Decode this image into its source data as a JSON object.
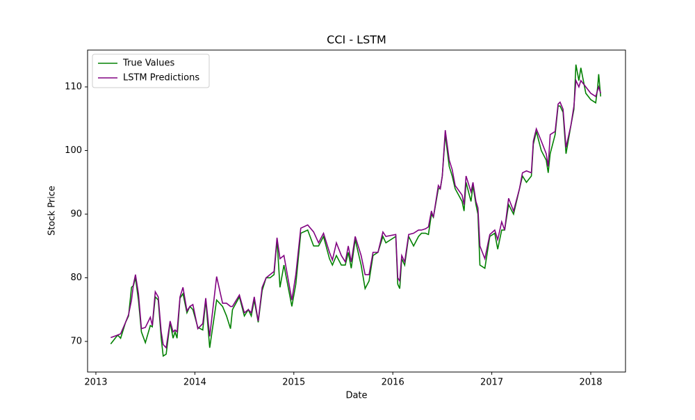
{
  "chart_data": {
    "type": "line",
    "title": "CCI - LSTM",
    "x_label": "Date",
    "y_label": "Stock Price",
    "x": [
      2013.15,
      2013.22,
      2013.25,
      2013.3,
      2013.33,
      2013.36,
      2013.38,
      2013.4,
      2013.43,
      2013.46,
      2013.5,
      2013.55,
      2013.57,
      2013.6,
      2013.63,
      2013.66,
      2013.68,
      2013.71,
      2013.75,
      2013.78,
      2013.8,
      2013.82,
      2013.85,
      2013.88,
      2013.92,
      2013.95,
      2013.98,
      2014.03,
      2014.08,
      2014.11,
      2014.15,
      2014.22,
      2014.28,
      2014.32,
      2014.36,
      2014.38,
      2014.45,
      2014.5,
      2014.54,
      2014.57,
      2014.6,
      2014.64,
      2014.68,
      2014.72,
      2014.76,
      2014.8,
      2014.83,
      2014.86,
      2014.9,
      2014.98,
      2015.02,
      2015.07,
      2015.14,
      2015.2,
      2015.25,
      2015.3,
      2015.36,
      2015.39,
      2015.43,
      2015.48,
      2015.52,
      2015.55,
      2015.58,
      2015.62,
      2015.68,
      2015.72,
      2015.76,
      2015.8,
      2015.85,
      2015.9,
      2015.93,
      2016.03,
      2016.05,
      2016.07,
      2016.09,
      2016.12,
      2016.16,
      2016.21,
      2016.26,
      2016.29,
      2016.33,
      2016.36,
      2016.39,
      2016.41,
      2016.46,
      2016.48,
      2016.5,
      2016.53,
      2016.57,
      2016.6,
      2016.63,
      2016.7,
      2016.72,
      2016.74,
      2016.79,
      2016.81,
      2016.84,
      2016.86,
      2016.88,
      2016.93,
      2016.98,
      2017.03,
      2017.06,
      2017.1,
      2017.13,
      2017.17,
      2017.22,
      2017.28,
      2017.31,
      2017.35,
      2017.4,
      2017.42,
      2017.45,
      2017.5,
      2017.55,
      2017.57,
      2017.59,
      2017.64,
      2017.67,
      2017.69,
      2017.72,
      2017.75,
      2017.8,
      2017.83,
      2017.85,
      2017.88,
      2017.9,
      2017.95,
      2018.0,
      2018.05,
      2018.07,
      2018.08,
      2018.1
    ],
    "series": [
      {
        "name": "True Values",
        "color": "#008000",
        "values": [
          69.6,
          71.0,
          70.5,
          73.0,
          74.0,
          78.5,
          78.8,
          80.0,
          76.5,
          71.5,
          69.8,
          72.5,
          72.3,
          77.0,
          76.5,
          70.5,
          67.7,
          68.0,
          73.0,
          70.5,
          71.5,
          70.5,
          76.8,
          77.5,
          74.5,
          75.5,
          75.0,
          72.2,
          71.8,
          76.5,
          69.0,
          76.5,
          75.5,
          74.0,
          72.0,
          75.0,
          77.0,
          74.0,
          75.0,
          74.0,
          76.5,
          73.0,
          78.0,
          80.0,
          80.0,
          80.5,
          86.0,
          78.5,
          82.0,
          75.5,
          79.0,
          87.0,
          87.5,
          85.0,
          85.0,
          86.5,
          83.0,
          82.0,
          83.5,
          82.0,
          82.0,
          84.0,
          81.5,
          86.0,
          82.0,
          78.3,
          79.5,
          83.5,
          84.0,
          86.5,
          85.5,
          86.5,
          79.0,
          78.3,
          83.0,
          82.0,
          86.5,
          85.0,
          86.5,
          87.0,
          87.0,
          86.8,
          90.0,
          89.5,
          94.0,
          94.0,
          96.0,
          102.5,
          97.5,
          96.0,
          94.0,
          92.0,
          90.5,
          95.0,
          92.0,
          94.5,
          91.5,
          90.0,
          82.0,
          81.5,
          86.5,
          87.0,
          84.5,
          87.5,
          87.5,
          91.5,
          90.0,
          94.0,
          96.0,
          95.0,
          96.0,
          101.0,
          103.0,
          100.0,
          98.5,
          96.5,
          99.5,
          102.5,
          107.0,
          107.0,
          106.0,
          99.5,
          104.0,
          106.5,
          113.5,
          111.0,
          113.0,
          109.0,
          108.0,
          107.5,
          110.0,
          112.0,
          108.5
        ]
      },
      {
        "name": "LSTM Predictions",
        "color": "#800080",
        "values": [
          70.6,
          71.0,
          71.2,
          73.0,
          74.2,
          76.5,
          79.0,
          80.5,
          77.5,
          72.0,
          72.2,
          73.8,
          72.5,
          77.8,
          77.0,
          71.5,
          69.5,
          69.0,
          73.2,
          71.5,
          71.8,
          71.5,
          77.0,
          78.5,
          74.8,
          75.5,
          75.8,
          72.0,
          72.8,
          76.8,
          70.8,
          80.2,
          76.0,
          76.0,
          75.5,
          75.5,
          77.3,
          74.5,
          75.0,
          74.5,
          77.0,
          73.2,
          78.5,
          80.0,
          80.5,
          81.0,
          86.3,
          83.0,
          83.5,
          76.5,
          80.5,
          87.8,
          88.3,
          87.2,
          85.5,
          87.0,
          84.0,
          82.8,
          85.5,
          83.5,
          82.5,
          85.0,
          82.5,
          86.5,
          83.5,
          80.5,
          80.5,
          84.0,
          84.0,
          87.2,
          86.5,
          86.8,
          80.0,
          79.5,
          83.5,
          82.5,
          86.8,
          87.0,
          87.5,
          87.5,
          87.7,
          88.0,
          90.5,
          89.5,
          94.5,
          94.0,
          96.0,
          103.2,
          98.5,
          97.0,
          94.5,
          93.0,
          91.5,
          96.0,
          93.5,
          95.0,
          92.0,
          91.0,
          85.0,
          83.0,
          86.8,
          87.5,
          86.0,
          88.8,
          87.5,
          92.5,
          90.5,
          94.0,
          96.5,
          96.8,
          96.5,
          101.5,
          103.4,
          101.5,
          99.5,
          97.5,
          102.5,
          103.0,
          107.3,
          107.6,
          106.5,
          100.5,
          104.0,
          107.0,
          111.0,
          110.0,
          111.0,
          110.0,
          109.0,
          108.5,
          109.5,
          110.0,
          109.0
        ]
      }
    ],
    "xlim": [
      2012.916,
      2018.351
    ],
    "xticks": [
      2013,
      2014,
      2015,
      2016,
      2017,
      2018
    ],
    "ylim": [
      65.19,
      115.79
    ],
    "yticks": [
      70,
      80,
      90,
      100,
      110
    ],
    "grid": false,
    "legend": "upper left"
  }
}
